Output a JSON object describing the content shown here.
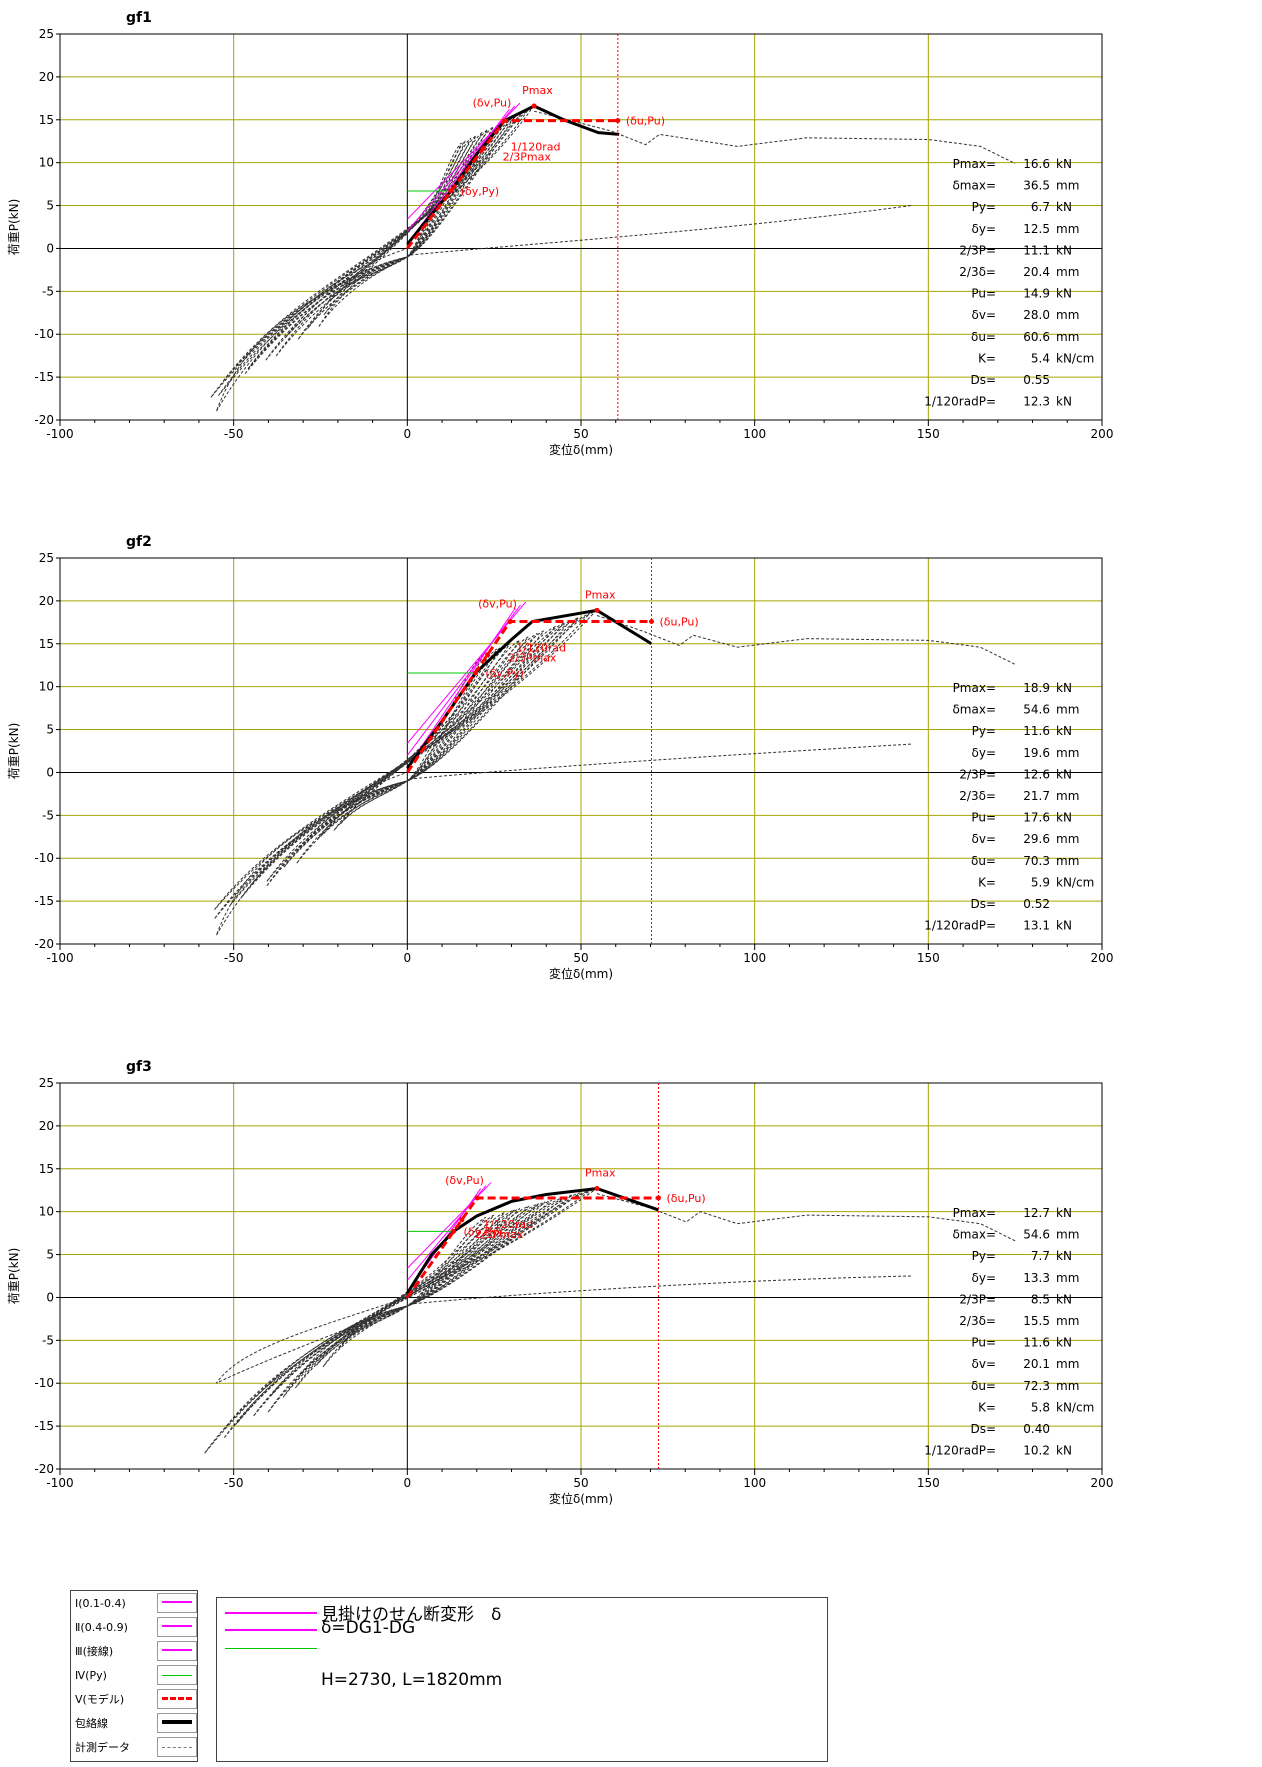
{
  "chart_data": [
    {
      "type": "line",
      "title": "gf1",
      "xlabel": "変位δ(mm)",
      "ylabel": "荷重P(kN)",
      "xlim": [
        -100,
        200
      ],
      "ylim": [
        -20,
        25
      ],
      "xticks": [
        -100,
        -50,
        0,
        50,
        100,
        150,
        200
      ],
      "yticks": [
        25,
        20,
        15,
        10,
        5,
        0,
        -5,
        -10,
        -15,
        -20
      ],
      "grid": true,
      "series": [
        {
          "name": "包絡線",
          "x": [
            0,
            5,
            12.5,
            20,
            28,
            36.5,
            45,
            55,
            61
          ],
          "y": [
            0.5,
            3,
            6.7,
            11,
            14.9,
            16.6,
            15,
            13.5,
            13.3
          ]
        },
        {
          "name": "Ⅴ(モデル)",
          "x": [
            0,
            28,
            60.6
          ],
          "y": [
            0,
            14.9,
            14.9
          ]
        }
      ],
      "vline_x": 60.6,
      "annotations": {
        "pmax": "Pmax",
        "dv": "(δv,Pu)",
        "du": "(δu,Pu)",
        "rad": "1/120rad",
        "p23": "2/3Pmax",
        "py": "(δy,Py)"
      },
      "stats": [
        {
          "label": "Pmax=",
          "value": "16.6",
          "unit": "kN"
        },
        {
          "label": "δmax=",
          "value": "36.5",
          "unit": "mm"
        },
        {
          "label": "Py=",
          "value": "6.7",
          "unit": "kN"
        },
        {
          "label": "δy=",
          "value": "12.5",
          "unit": "mm"
        },
        {
          "label": "2/3P=",
          "value": "11.1",
          "unit": "kN"
        },
        {
          "label": "2/3δ=",
          "value": "20.4",
          "unit": "mm"
        },
        {
          "label": "Pu=",
          "value": "14.9",
          "unit": "kN"
        },
        {
          "label": "δv=",
          "value": "28.0",
          "unit": "mm"
        },
        {
          "label": "δu=",
          "value": "60.6",
          "unit": "mm"
        },
        {
          "label": "K=",
          "value": "5.4",
          "unit": "kN/cm"
        },
        {
          "label": "Ds=",
          "value": "0.55",
          "unit": ""
        },
        {
          "label": "1/120radP=",
          "value": "12.3",
          "unit": "kN"
        }
      ]
    },
    {
      "type": "line",
      "title": "gf2",
      "xlabel": "変位δ(mm)",
      "ylabel": "荷重P(kN)",
      "xlim": [
        -100,
        200
      ],
      "ylim": [
        -20,
        25
      ],
      "xticks": [
        -100,
        -50,
        0,
        50,
        100,
        150,
        200
      ],
      "yticks": [
        25,
        20,
        15,
        10,
        5,
        0,
        -5,
        -10,
        -15,
        -20
      ],
      "grid": true,
      "series": [
        {
          "name": "包絡線",
          "x": [
            0,
            10,
            19.6,
            30,
            36,
            54.6,
            70.3
          ],
          "y": [
            0.5,
            6,
            11.6,
            15.5,
            17.6,
            18.9,
            15
          ]
        },
        {
          "name": "Ⅴ(モデル)",
          "x": [
            0,
            29.6,
            70.3
          ],
          "y": [
            0,
            17.6,
            17.6
          ]
        }
      ],
      "vline_x": 70.3,
      "annotations": {
        "pmax": "Pmax",
        "dv": "(δv,Pu)",
        "du": "(δu,Pu)",
        "rad": "1/120rad",
        "p23": "2/3Pmax",
        "py": "(δy,Py)"
      },
      "stats": [
        {
          "label": "Pmax=",
          "value": "18.9",
          "unit": "kN"
        },
        {
          "label": "δmax=",
          "value": "54.6",
          "unit": "mm"
        },
        {
          "label": "Py=",
          "value": "11.6",
          "unit": "kN"
        },
        {
          "label": "δy=",
          "value": "19.6",
          "unit": "mm"
        },
        {
          "label": "2/3P=",
          "value": "12.6",
          "unit": "kN"
        },
        {
          "label": "2/3δ=",
          "value": "21.7",
          "unit": "mm"
        },
        {
          "label": "Pu=",
          "value": "17.6",
          "unit": "kN"
        },
        {
          "label": "δv=",
          "value": "29.6",
          "unit": "mm"
        },
        {
          "label": "δu=",
          "value": "70.3",
          "unit": "mm"
        },
        {
          "label": "K=",
          "value": "5.9",
          "unit": "kN/cm"
        },
        {
          "label": "Ds=",
          "value": "0.52",
          "unit": ""
        },
        {
          "label": "1/120radP=",
          "value": "13.1",
          "unit": "kN"
        }
      ]
    },
    {
      "type": "line",
      "title": "gf3",
      "xlabel": "変位δ(mm)",
      "ylabel": "荷重P(kN)",
      "xlim": [
        -100,
        200
      ],
      "ylim": [
        -20,
        25
      ],
      "xticks": [
        -100,
        -50,
        0,
        50,
        100,
        150,
        200
      ],
      "yticks": [
        25,
        20,
        15,
        10,
        5,
        0,
        -5,
        -10,
        -15,
        -20
      ],
      "grid": true,
      "series": [
        {
          "name": "包絡線",
          "x": [
            0,
            7,
            13.3,
            20,
            30,
            40,
            54.6,
            72.3
          ],
          "y": [
            0.5,
            5,
            7.7,
            9.5,
            11.2,
            12,
            12.7,
            10.2
          ]
        },
        {
          "name": "Ⅴ(モデル)",
          "x": [
            0,
            20.1,
            72.3
          ],
          "y": [
            0,
            11.6,
            11.6
          ]
        }
      ],
      "vline_x": 72.3,
      "annotations": {
        "pmax": "Pmax",
        "dv": "(δv,Pu)",
        "du": "(δu,Pu)",
        "rad": "1/120rad",
        "p23": "2/3Pmax",
        "py": "(δy,Py)"
      },
      "stats": [
        {
          "label": "Pmax=",
          "value": "12.7",
          "unit": "kN"
        },
        {
          "label": "δmax=",
          "value": "54.6",
          "unit": "mm"
        },
        {
          "label": "Py=",
          "value": "7.7",
          "unit": "kN"
        },
        {
          "label": "δy=",
          "value": "13.3",
          "unit": "mm"
        },
        {
          "label": "2/3P=",
          "value": "8.5",
          "unit": "kN"
        },
        {
          "label": "2/3δ=",
          "value": "15.5",
          "unit": "mm"
        },
        {
          "label": "Pu=",
          "value": "11.6",
          "unit": "kN"
        },
        {
          "label": "δv=",
          "value": "20.1",
          "unit": "mm"
        },
        {
          "label": "δu=",
          "value": "72.3",
          "unit": "mm"
        },
        {
          "label": "K=",
          "value": "5.8",
          "unit": "kN/cm"
        },
        {
          "label": "Ds=",
          "value": "0.40",
          "unit": ""
        },
        {
          "label": "1/120radP=",
          "value": "10.2",
          "unit": "kN"
        }
      ]
    }
  ],
  "legend": {
    "items": [
      {
        "label": "Ⅰ(0.1-0.4)",
        "style": "magenta-thin"
      },
      {
        "label": "Ⅱ(0.4-0.9)",
        "style": "magenta-thin"
      },
      {
        "label": "Ⅲ(接線)",
        "style": "magenta-thin"
      },
      {
        "label": "Ⅳ(Py)",
        "style": "green-thin"
      },
      {
        "label": "Ⅴ(モデル)",
        "style": "red-dashed"
      },
      {
        "label": "包絡線",
        "style": "black-thick"
      },
      {
        "label": "計測データ",
        "style": "gray-dashed"
      }
    ],
    "notes": [
      "見掛けのせん断変形　δ",
      "δ=DG1-DG",
      "H=2730, L=1820mm"
    ]
  },
  "colors": {
    "grid": "#a6a600",
    "model": "#ff0000",
    "tangent": "#ff00ff",
    "py_line": "#00c800",
    "envelope": "#000000",
    "measured": "#333333"
  }
}
